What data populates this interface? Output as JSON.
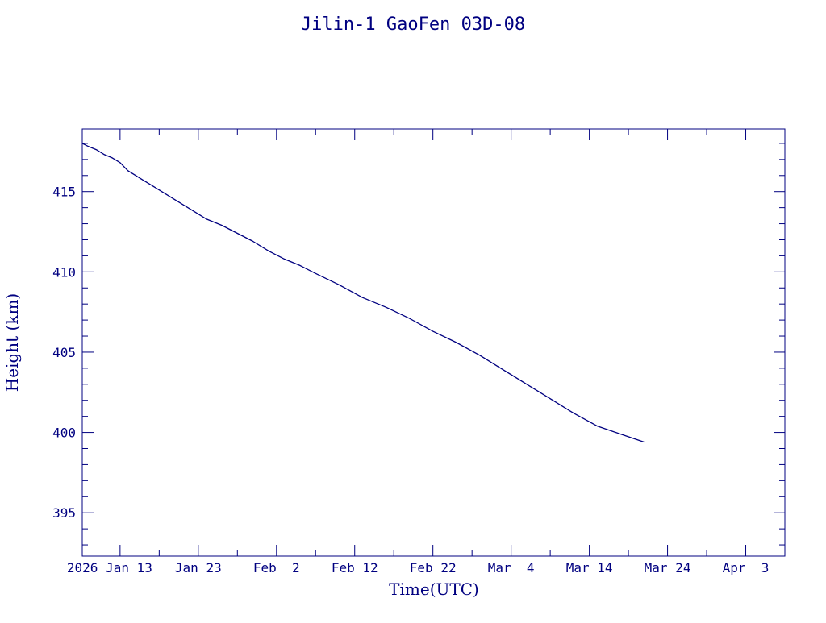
{
  "chart_data": {
    "type": "line",
    "title": "Jilin-1 GaoFen 03D-08",
    "xlabel": "Time(UTC)",
    "ylabel": "Height (km)",
    "ylim": [
      392.3,
      418.9
    ],
    "xlim": [
      "2026-01-08T04:00",
      "2026-04-08T00:00"
    ],
    "yticks": [
      395,
      400,
      405,
      410,
      415
    ],
    "ytick_labels": [
      "395",
      "400",
      "405",
      "410",
      "415"
    ],
    "xticks": [
      "2026-01-13",
      "2026-01-23",
      "2026-02-02",
      "2026-02-12",
      "2026-02-22",
      "2026-03-04",
      "2026-03-14",
      "2026-03-24",
      "2026-04-03"
    ],
    "xtick_labels": [
      "2026 Jan 13",
      "Jan 23",
      "Feb  2",
      "Feb 12",
      "Feb 22",
      "Mar  4",
      "Mar 14",
      "Mar 24",
      "Apr  3"
    ],
    "color": "#000080",
    "series": [
      {
        "x": [
          "2026-01-08T04:00",
          "2026-01-09",
          "2026-01-10",
          "2026-01-11",
          "2026-01-12",
          "2026-01-13",
          "2026-01-14",
          "2026-01-15",
          "2026-01-15T08:00",
          "2026-01-16",
          "2026-01-17",
          "2026-01-18",
          "2026-01-20",
          "2026-01-22",
          "2026-01-24",
          "2026-01-26",
          "2026-01-28",
          "2026-01-30",
          "2026-02-01",
          "2026-02-03",
          "2026-02-05",
          "2026-02-07",
          "2026-02-10",
          "2026-02-13",
          "2026-02-16",
          "2026-02-19",
          "2026-02-22",
          "2026-02-25",
          "2026-02-28",
          "2026-03-03",
          "2026-03-06",
          "2026-03-09",
          "2026-03-12",
          "2026-03-15",
          "2026-03-18",
          "2026-03-21"
        ],
        "y": [
          418.0,
          417.8,
          417.6,
          417.3,
          417.1,
          416.8,
          416.3,
          416.0,
          415.9,
          415.7,
          415.4,
          415.1,
          414.5,
          413.9,
          413.3,
          412.9,
          412.4,
          411.9,
          411.3,
          410.8,
          410.4,
          409.9,
          409.2,
          408.4,
          407.8,
          407.1,
          406.3,
          405.6,
          404.8,
          403.9,
          403.0,
          402.1,
          401.2,
          400.4,
          399.9,
          399.4
        ]
      }
    ]
  }
}
